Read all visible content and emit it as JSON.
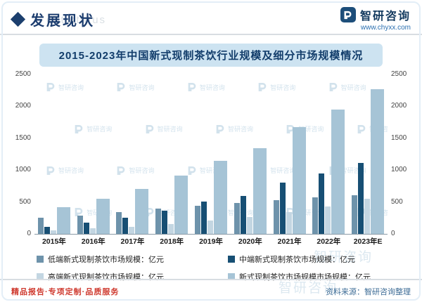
{
  "header": {
    "title": "发展现状",
    "ghost_text": "ent status",
    "logo_text": "智研咨询",
    "website": "www.chyxx.com"
  },
  "watermark": "智研咨询",
  "footer": {
    "services": "精品报告·专项定制·品质服务",
    "source": "资料来源：智研咨询整理"
  },
  "chart_data": {
    "type": "bar",
    "title": "2015-2023年中国新式现制茶饮行业规模及细分市场规模情况",
    "categories": [
      "2015年",
      "2016年",
      "2017年",
      "2018年",
      "2019年",
      "2020年",
      "2021年",
      "2022年",
      "2023年E"
    ],
    "series": [
      {
        "name": "低端新式现制茶饮市场规模：亿元",
        "color": "#6e93ab",
        "values": [
          250,
          290,
          340,
          390,
          440,
          480,
          530,
          570,
          600
        ]
      },
      {
        "name": "中端新式现制茶饮市场规模：亿元",
        "color": "#174f74",
        "values": [
          112,
          171,
          251,
          361,
          501,
          595,
          799,
          938,
          1110
        ]
      },
      {
        "name": "高端新式现制茶饮市场规模：亿元",
        "color": "#c3d6e2",
        "values": [
          60,
          85,
          115,
          155,
          205,
          265,
          340,
          430,
          550
        ]
      },
      {
        "name": "新式现制茶饮市场规模市场规模：亿元",
        "color": "#a6c4d6",
        "values": [
          422,
          546,
          706,
          906,
          1146,
          1340,
          1669,
          1938,
          2260
        ]
      }
    ],
    "ylabel": "",
    "xlabel": "",
    "unit": "亿元",
    "ylim": [
      0,
      2500
    ],
    "yticks": [
      0,
      500,
      1000,
      1500,
      2000,
      2500
    ],
    "grid": false,
    "legend_position": "bottom"
  }
}
